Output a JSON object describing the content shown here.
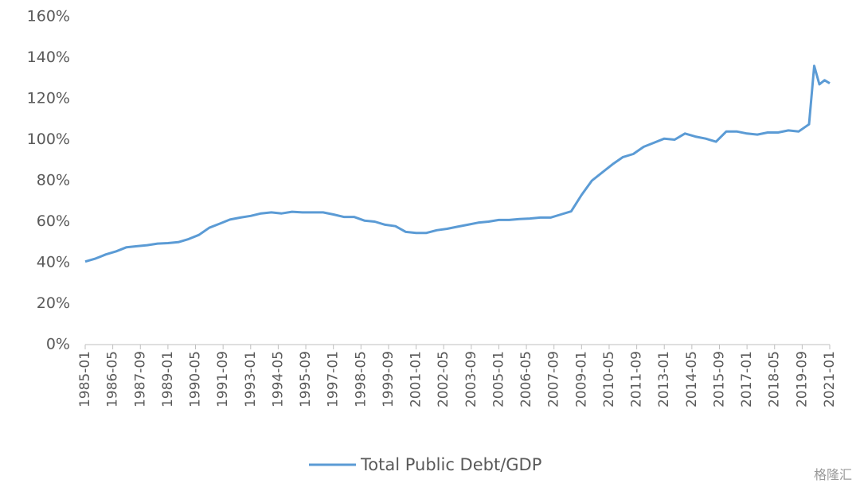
{
  "chart_data": {
    "type": "line",
    "x": [
      1985.0,
      1985.5,
      1986.0,
      1986.5,
      1987.0,
      1987.5,
      1988.0,
      1988.5,
      1989.0,
      1989.5,
      1990.0,
      1990.5,
      1991.0,
      1991.5,
      1992.0,
      1992.5,
      1993.0,
      1993.5,
      1994.0,
      1994.5,
      1995.0,
      1995.5,
      1996.0,
      1996.5,
      1997.0,
      1997.5,
      1998.0,
      1998.5,
      1999.0,
      1999.5,
      2000.0,
      2000.5,
      2001.0,
      2001.5,
      2002.0,
      2002.5,
      2003.0,
      2003.5,
      2004.0,
      2004.5,
      2005.0,
      2005.5,
      2006.0,
      2006.5,
      2007.0,
      2007.5,
      2008.0,
      2008.5,
      2009.0,
      2009.5,
      2010.0,
      2010.5,
      2011.0,
      2011.5,
      2012.0,
      2012.5,
      2013.0,
      2013.5,
      2014.0,
      2014.5,
      2015.0,
      2015.5,
      2016.0,
      2016.5,
      2017.0,
      2017.5,
      2018.0,
      2018.5,
      2019.0,
      2019.5,
      2020.0,
      2020.25,
      2020.5,
      2020.75,
      2021.0
    ],
    "series": [
      {
        "name": "Total Public Debt/GDP",
        "color": "#5b9bd5",
        "values": [
          40.5,
          42,
          44,
          45.5,
          47.5,
          48,
          48.5,
          49.3,
          49.5,
          50,
          51.5,
          53.5,
          57,
          59,
          61,
          62,
          62.8,
          64,
          64.5,
          64,
          64.8,
          64.5,
          64.5,
          64.5,
          63.5,
          62.3,
          62.3,
          60.5,
          60,
          58.5,
          57.8,
          55,
          54.5,
          54.5,
          55.8,
          56.5,
          57.5,
          58.5,
          59.5,
          60,
          60.8,
          60.8,
          61.3,
          61.5,
          62,
          62,
          63.5,
          65,
          73,
          80,
          84,
          88,
          91.5,
          93,
          96.5,
          98.5,
          100.5,
          100,
          103,
          101.5,
          100.5,
          99,
          104,
          104,
          103,
          102.5,
          103.5,
          103.5,
          104.5,
          104,
          107.5,
          136,
          127,
          129,
          127.5
        ]
      }
    ],
    "xlim": [
      1985.0,
      2021.0
    ],
    "xticks": [
      {
        "value": 1985.0,
        "label": "1985-01"
      },
      {
        "value": 1986.333,
        "label": "1986-05"
      },
      {
        "value": 1987.667,
        "label": "1987-09"
      },
      {
        "value": 1989.0,
        "label": "1989-01"
      },
      {
        "value": 1990.333,
        "label": "1990-05"
      },
      {
        "value": 1991.667,
        "label": "1991-09"
      },
      {
        "value": 1993.0,
        "label": "1993-01"
      },
      {
        "value": 1994.333,
        "label": "1994-05"
      },
      {
        "value": 1995.667,
        "label": "1995-09"
      },
      {
        "value": 1997.0,
        "label": "1997-01"
      },
      {
        "value": 1998.333,
        "label": "1998-05"
      },
      {
        "value": 1999.667,
        "label": "1999-09"
      },
      {
        "value": 2001.0,
        "label": "2001-01"
      },
      {
        "value": 2002.333,
        "label": "2002-05"
      },
      {
        "value": 2003.667,
        "label": "2003-09"
      },
      {
        "value": 2005.0,
        "label": "2005-01"
      },
      {
        "value": 2006.333,
        "label": "2006-05"
      },
      {
        "value": 2007.667,
        "label": "2007-09"
      },
      {
        "value": 2009.0,
        "label": "2009-01"
      },
      {
        "value": 2010.333,
        "label": "2010-05"
      },
      {
        "value": 2011.667,
        "label": "2011-09"
      },
      {
        "value": 2013.0,
        "label": "2013-01"
      },
      {
        "value": 2014.333,
        "label": "2014-05"
      },
      {
        "value": 2015.667,
        "label": "2015-09"
      },
      {
        "value": 2017.0,
        "label": "2017-01"
      },
      {
        "value": 2018.333,
        "label": "2018-05"
      },
      {
        "value": 2019.667,
        "label": "2019-09"
      },
      {
        "value": 2021.0,
        "label": "2021-01"
      }
    ],
    "ylim": [
      0,
      160
    ],
    "yticks": [
      {
        "value": 0,
        "label": "0%"
      },
      {
        "value": 20,
        "label": "20%"
      },
      {
        "value": 40,
        "label": "40%"
      },
      {
        "value": 60,
        "label": "60%"
      },
      {
        "value": 80,
        "label": "80%"
      },
      {
        "value": 100,
        "label": "100%"
      },
      {
        "value": 120,
        "label": "120%"
      },
      {
        "value": 140,
        "label": "140%"
      },
      {
        "value": 160,
        "label": "160%"
      }
    ],
    "grid": false,
    "legend": "bottom",
    "watermark": "格隆汇"
  }
}
